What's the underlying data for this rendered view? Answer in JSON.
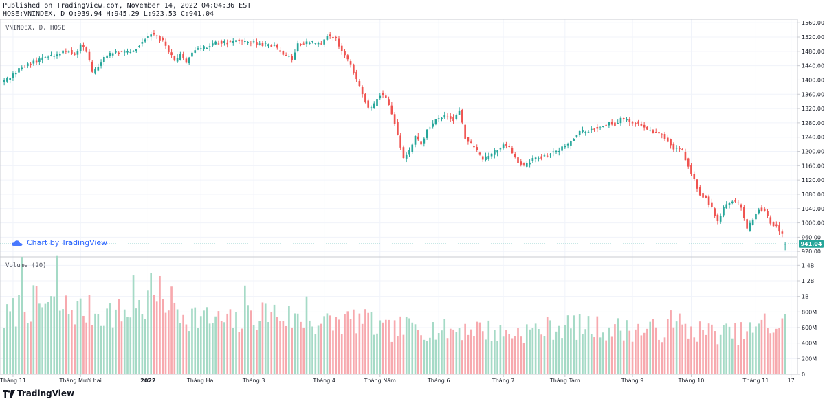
{
  "header": {
    "published": "Published on TradingView.com, November 14, 2022 04:04:36 EST",
    "ohlc": "HOSE:VNINDEX, D O:939.94 H:945.29 L:923.53 C:941.04"
  },
  "watermark": "Chart by TradingView",
  "brand": "TradingView",
  "colors": {
    "up": "#26a69a",
    "down": "#ef5350",
    "vol_up": "#a5dac6",
    "vol_down": "#f7a9ae",
    "last_price": "#26a69a"
  },
  "chart_data": [
    {
      "type": "candlestick",
      "title": "VNINDEX, D, HOSE",
      "ylim": [
        905,
        1570
      ],
      "y_ticks": [
        920,
        960,
        1000,
        1040,
        1080,
        1120,
        1160,
        1200,
        1240,
        1280,
        1320,
        1360,
        1400,
        1440,
        1480,
        1520,
        1560
      ],
      "y_tick_labels": [
        "920.00",
        "960.00",
        "1000.00",
        "1040.00",
        "1080.00",
        "1120.00",
        "1160.00",
        "1200.00",
        "1240.00",
        "1280.00",
        "1320.00",
        "1360.00",
        "1400.00",
        "1440.00",
        "1480.00",
        "1520.00",
        "1560.00"
      ],
      "last_price": 941.04,
      "last_price_label": "941.04",
      "x_ticks": [
        {
          "label": "Tháng 11",
          "index": 3,
          "bold": false
        },
        {
          "label": "Tháng Mười hai",
          "index": 26,
          "bold": false
        },
        {
          "label": "2022",
          "index": 49,
          "bold": true
        },
        {
          "label": "Tháng Hai",
          "index": 67,
          "bold": false
        },
        {
          "label": "Tháng 3",
          "index": 85,
          "bold": false
        },
        {
          "label": "Tháng 4",
          "index": 109,
          "bold": false
        },
        {
          "label": "Tháng Năm",
          "index": 128,
          "bold": false
        },
        {
          "label": "Tháng 6",
          "index": 148,
          "bold": false
        },
        {
          "label": "Tháng 7",
          "index": 170,
          "bold": false
        },
        {
          "label": "Tháng Tám",
          "index": 191,
          "bold": false
        },
        {
          "label": "Tháng 9",
          "index": 214,
          "bold": false
        },
        {
          "label": "Tháng 10",
          "index": 234,
          "bold": false
        },
        {
          "label": "Tháng 11",
          "index": 256,
          "bold": false
        },
        {
          "label": "17",
          "index": 268,
          "bold": false
        }
      ],
      "anchors": [
        [
          0,
          1395
        ],
        [
          5,
          1430
        ],
        [
          10,
          1450
        ],
        [
          15,
          1465
        ],
        [
          20,
          1478
        ],
        [
          22,
          1482
        ],
        [
          24,
          1470
        ],
        [
          26,
          1495
        ],
        [
          28,
          1480
        ],
        [
          30,
          1420
        ],
        [
          32,
          1440
        ],
        [
          35,
          1470
        ],
        [
          40,
          1480
        ],
        [
          44,
          1480
        ],
        [
          47,
          1510
        ],
        [
          50,
          1530
        ],
        [
          54,
          1510
        ],
        [
          56,
          1480
        ],
        [
          58,
          1450
        ],
        [
          60,
          1470
        ],
        [
          62,
          1450
        ],
        [
          64,
          1480
        ],
        [
          68,
          1490
        ],
        [
          72,
          1505
        ],
        [
          76,
          1505
        ],
        [
          80,
          1510
        ],
        [
          84,
          1505
        ],
        [
          88,
          1500
        ],
        [
          92,
          1495
        ],
        [
          95,
          1470
        ],
        [
          98,
          1460
        ],
        [
          100,
          1500
        ],
        [
          104,
          1505
        ],
        [
          108,
          1500
        ],
        [
          110,
          1525
        ],
        [
          113,
          1515
        ],
        [
          115,
          1480
        ],
        [
          118,
          1440
        ],
        [
          121,
          1380
        ],
        [
          124,
          1320
        ],
        [
          126,
          1330
        ],
        [
          128,
          1360
        ],
        [
          130,
          1350
        ],
        [
          133,
          1280
        ],
        [
          136,
          1180
        ],
        [
          138,
          1200
        ],
        [
          140,
          1240
        ],
        [
          142,
          1220
        ],
        [
          144,
          1260
        ],
        [
          147,
          1290
        ],
        [
          150,
          1300
        ],
        [
          153,
          1290
        ],
        [
          155,
          1315
        ],
        [
          157,
          1240
        ],
        [
          160,
          1210
        ],
        [
          163,
          1180
        ],
        [
          165,
          1185
        ],
        [
          167,
          1200
        ],
        [
          170,
          1220
        ],
        [
          172,
          1210
        ],
        [
          175,
          1170
        ],
        [
          177,
          1160
        ],
        [
          180,
          1180
        ],
        [
          183,
          1185
        ],
        [
          186,
          1195
        ],
        [
          189,
          1205
        ],
        [
          192,
          1220
        ],
        [
          195,
          1250
        ],
        [
          198,
          1258
        ],
        [
          200,
          1262
        ],
        [
          203,
          1270
        ],
        [
          206,
          1280
        ],
        [
          208,
          1275
        ],
        [
          210,
          1290
        ],
        [
          213,
          1285
        ],
        [
          216,
          1280
        ],
        [
          220,
          1255
        ],
        [
          223,
          1250
        ],
        [
          225,
          1240
        ],
        [
          228,
          1210
        ],
        [
          231,
          1200
        ],
        [
          233,
          1160
        ],
        [
          235,
          1120
        ],
        [
          237,
          1080
        ],
        [
          239,
          1070
        ],
        [
          241,
          1040
        ],
        [
          243,
          1000
        ],
        [
          245,
          1040
        ],
        [
          247,
          1060
        ],
        [
          249,
          1060
        ],
        [
          251,
          1040
        ],
        [
          253,
          980
        ],
        [
          255,
          1010
        ],
        [
          257,
          1040
        ],
        [
          259,
          1035
        ],
        [
          261,
          1000
        ],
        [
          263,
          990
        ],
        [
          265,
          965
        ],
        [
          266,
          940
        ]
      ],
      "seed": 20221114
    },
    {
      "type": "bar",
      "title": "Volume (20)",
      "ylim": [
        0,
        1500000000
      ],
      "y_ticks": [
        0,
        200000000,
        400000000,
        600000000,
        800000000,
        1000000000,
        1200000000,
        1400000000
      ],
      "y_tick_labels": [
        "0",
        "200M",
        "400M",
        "600M",
        "800M",
        "1B",
        "1.2B",
        "1.4B"
      ],
      "anchors": [
        [
          0,
          700
        ],
        [
          5,
          850
        ],
        [
          10,
          900
        ],
        [
          20,
          850
        ],
        [
          30,
          800
        ],
        [
          40,
          780
        ],
        [
          50,
          900
        ],
        [
          52,
          1000
        ],
        [
          56,
          950
        ],
        [
          60,
          800
        ],
        [
          70,
          700
        ],
        [
          80,
          650
        ],
        [
          85,
          750
        ],
        [
          90,
          800
        ],
        [
          100,
          700
        ],
        [
          110,
          650
        ],
        [
          120,
          700
        ],
        [
          130,
          550
        ],
        [
          140,
          620
        ],
        [
          150,
          560
        ],
        [
          160,
          600
        ],
        [
          170,
          520
        ],
        [
          180,
          560
        ],
        [
          190,
          620
        ],
        [
          200,
          600
        ],
        [
          210,
          580
        ],
        [
          220,
          560
        ],
        [
          230,
          580
        ],
        [
          240,
          540
        ],
        [
          250,
          520
        ],
        [
          260,
          600
        ],
        [
          266,
          650
        ]
      ],
      "spikes": [
        [
          6,
          1500
        ],
        [
          18,
          1520
        ],
        [
          50,
          1300
        ],
        [
          44,
          1270
        ],
        [
          82,
          1140
        ],
        [
          103,
          1000
        ],
        [
          125,
          800
        ],
        [
          227,
          820
        ],
        [
          230,
          780
        ],
        [
          259,
          780
        ]
      ],
      "seed": 7
    }
  ]
}
